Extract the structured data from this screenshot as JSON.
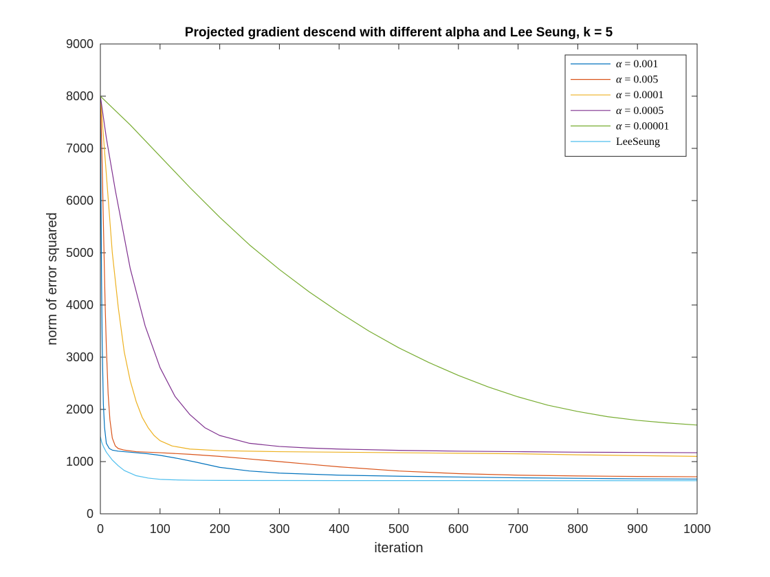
{
  "chart_data": {
    "type": "line",
    "title": "Projected gradient descend with different alpha and Lee Seung, k = 5",
    "xlabel": "iteration",
    "ylabel": "norm of error squared",
    "xlim": [
      0,
      1000
    ],
    "ylim": [
      0,
      9000
    ],
    "xticks": [
      0,
      100,
      200,
      300,
      400,
      500,
      600,
      700,
      800,
      900,
      1000
    ],
    "yticks": [
      0,
      1000,
      2000,
      3000,
      4000,
      5000,
      6000,
      7000,
      8000,
      9000
    ],
    "grid": false,
    "legend_position": "top-right",
    "series": [
      {
        "name": "α = 0.001",
        "legend_symbol": "α",
        "legend_value": " = 0.001",
        "color": "#0072bd",
        "x": [
          0,
          1,
          2,
          3,
          5,
          7,
          10,
          15,
          20,
          30,
          50,
          80,
          100,
          130,
          160,
          200,
          250,
          300,
          350,
          400,
          500,
          600,
          700,
          800,
          900,
          1000
        ],
        "y": [
          8000,
          6200,
          4500,
          3300,
          2100,
          1650,
          1350,
          1250,
          1220,
          1200,
          1180,
          1150,
          1120,
          1060,
          990,
          890,
          820,
          780,
          760,
          740,
          720,
          705,
          690,
          680,
          670,
          665
        ]
      },
      {
        "name": "α = 0.005",
        "legend_symbol": "α",
        "legend_value": " = 0.005",
        "color": "#d95319",
        "x": [
          0,
          2,
          5,
          8,
          10,
          13,
          16,
          20,
          25,
          30,
          40,
          60,
          100,
          150,
          200,
          250,
          300,
          350,
          400,
          500,
          600,
          700,
          800,
          900,
          1000
        ],
        "y": [
          8000,
          7200,
          5600,
          4000,
          3200,
          2300,
          1800,
          1450,
          1300,
          1250,
          1220,
          1190,
          1170,
          1140,
          1100,
          1050,
          1000,
          950,
          900,
          820,
          770,
          740,
          725,
          715,
          710
        ]
      },
      {
        "name": "α = 0.0001",
        "legend_symbol": "α",
        "legend_value": " = 0.0001",
        "color": "#edb120",
        "x": [
          0,
          10,
          20,
          30,
          40,
          50,
          60,
          70,
          80,
          90,
          100,
          120,
          150,
          200,
          300,
          400,
          500,
          600,
          700,
          800,
          900,
          1000
        ],
        "y": [
          8000,
          6500,
          5000,
          3950,
          3100,
          2550,
          2150,
          1850,
          1650,
          1500,
          1400,
          1300,
          1240,
          1210,
          1190,
          1180,
          1170,
          1160,
          1150,
          1130,
          1115,
          1100
        ]
      },
      {
        "name": "α = 0.0005",
        "legend_symbol": "α",
        "legend_value": " = 0.0005",
        "color": "#7e2f8e",
        "x": [
          0,
          10,
          25,
          50,
          75,
          100,
          125,
          150,
          175,
          200,
          250,
          300,
          350,
          400,
          500,
          600,
          700,
          800,
          900,
          1000
        ],
        "y": [
          8000,
          7200,
          6200,
          4700,
          3600,
          2800,
          2250,
          1900,
          1650,
          1500,
          1350,
          1290,
          1260,
          1240,
          1215,
          1200,
          1190,
          1180,
          1175,
          1170
        ]
      },
      {
        "name": "α = 0.00001",
        "legend_symbol": "α",
        "legend_value": " = 0.00001",
        "color": "#77ac30",
        "x": [
          0,
          50,
          100,
          150,
          200,
          250,
          300,
          350,
          400,
          450,
          500,
          550,
          600,
          650,
          700,
          750,
          800,
          850,
          900,
          950,
          1000
        ],
        "y": [
          8000,
          7450,
          6850,
          6250,
          5680,
          5150,
          4680,
          4250,
          3860,
          3500,
          3180,
          2900,
          2650,
          2430,
          2240,
          2080,
          1960,
          1860,
          1790,
          1740,
          1700
        ]
      },
      {
        "name": "LeeSeung",
        "legend_symbol": "",
        "legend_value": "LeeSeung",
        "color": "#4dbeee",
        "x": [
          0,
          2,
          5,
          10,
          20,
          30,
          40,
          60,
          80,
          100,
          130,
          160,
          200,
          300,
          400,
          500,
          600,
          700,
          800,
          900,
          1000
        ],
        "y": [
          1480,
          1380,
          1290,
          1180,
          1030,
          920,
          830,
          730,
          685,
          660,
          648,
          642,
          640,
          638,
          637,
          636,
          636,
          635,
          635,
          635,
          635
        ]
      }
    ]
  }
}
